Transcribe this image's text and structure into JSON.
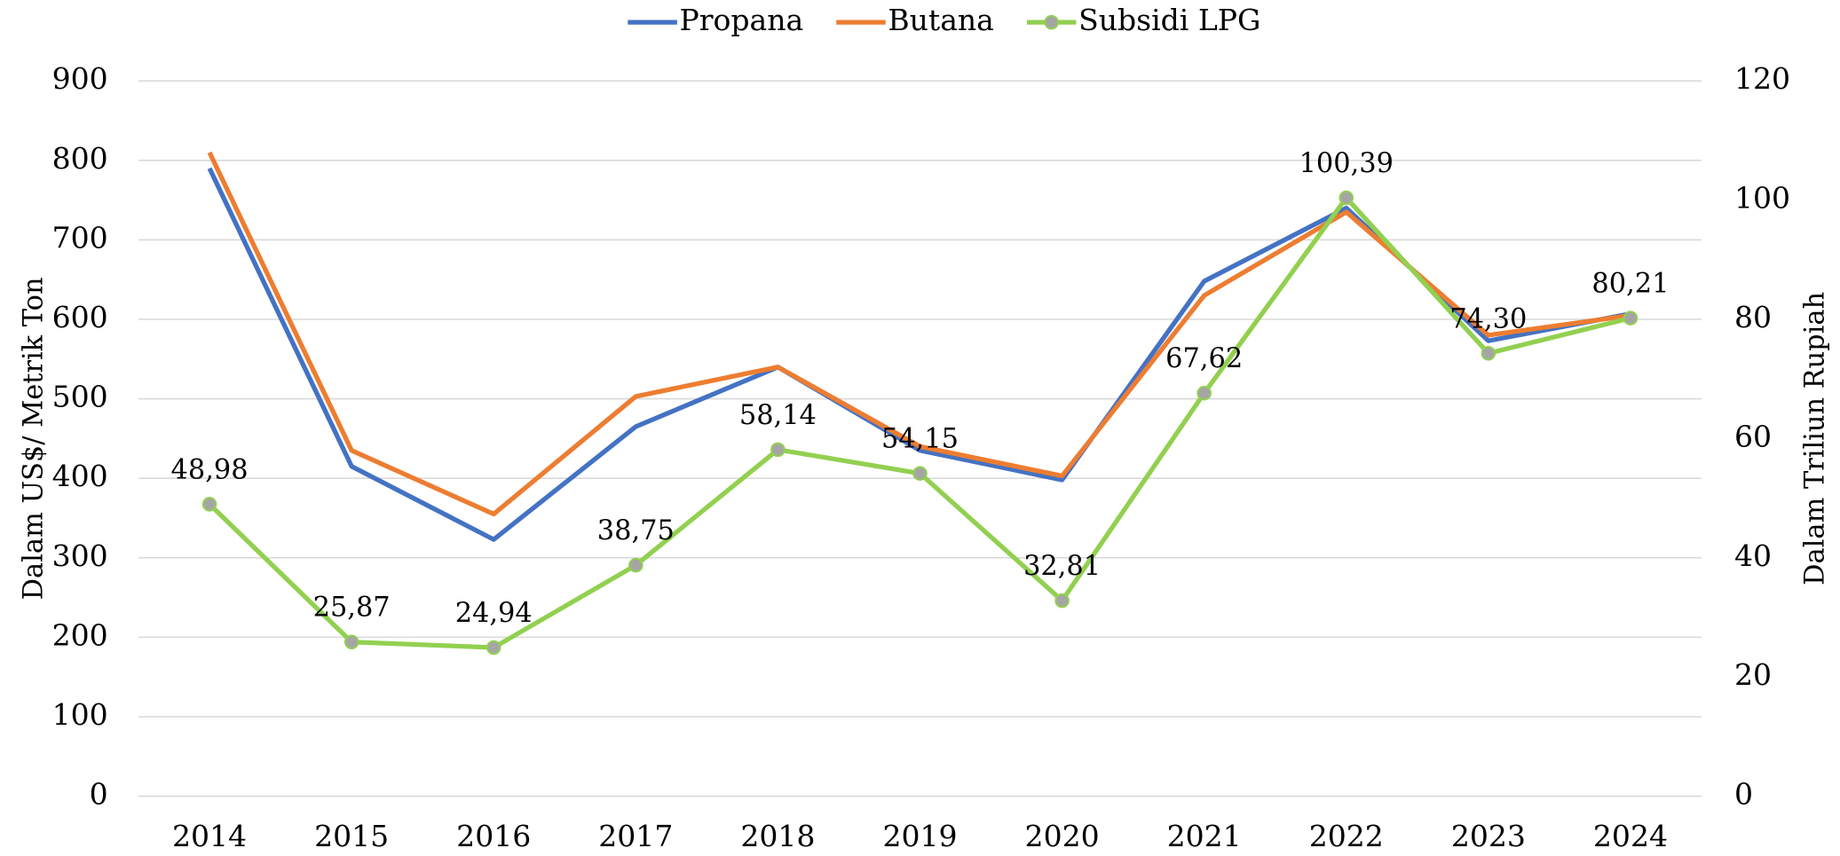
{
  "chart_data": {
    "type": "line",
    "categories": [
      "2014",
      "2015",
      "2016",
      "2017",
      "2018",
      "2019",
      "2020",
      "2021",
      "2022",
      "2023",
      "2024"
    ],
    "series": [
      {
        "name": "Propana",
        "color": "#4472c4",
        "values": [
          790,
          415,
          323,
          465,
          540,
          435,
          398,
          648,
          740,
          573,
          607
        ]
      },
      {
        "name": "Butana",
        "color": "#ed7d31",
        "values": [
          810,
          435,
          355,
          503,
          540,
          440,
          403,
          630,
          735,
          580,
          605
        ]
      },
      {
        "name": "Subsidi LPG",
        "color": "#92d050",
        "marker_color": "#a5a5a5",
        "axis": "y2",
        "values": [
          48.98,
          25.87,
          24.94,
          38.75,
          58.14,
          54.15,
          32.81,
          67.62,
          100.39,
          74.3,
          80.21
        ],
        "value_labels": [
          "48,98",
          "25,87",
          "24,94",
          "38,75",
          "58,14",
          "54,15",
          "32,81",
          "67,62",
          "100,39",
          "74,30",
          "80,21"
        ]
      }
    ],
    "ylabel": "Dalam US$/ Metrik Ton",
    "y2label": "Dalam Triliun Rupiah",
    "ylim": [
      0,
      900
    ],
    "yticks": [
      0,
      100,
      200,
      300,
      400,
      500,
      600,
      700,
      800,
      900
    ],
    "y2lim": [
      0,
      120
    ],
    "y2ticks": [
      0,
      20,
      40,
      60,
      80,
      100,
      120
    ],
    "grid": true,
    "legend": "top"
  }
}
